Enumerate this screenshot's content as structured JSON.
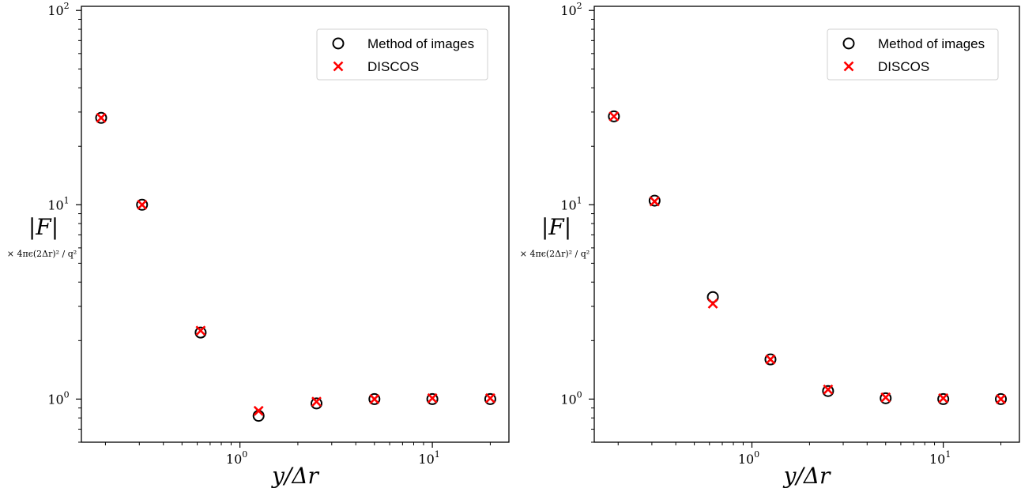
{
  "chart_data": [
    {
      "type": "scatter",
      "xscale": "log",
      "yscale": "log",
      "xlim": [
        0.15,
        25
      ],
      "ylim": [
        0.6,
        105
      ],
      "xlabel": "y/Δr",
      "ylabel_main": "|F|",
      "ylabel_sub": "× 4πϵ(2Δr)² / q²",
      "x_ticks": [
        {
          "value": 1,
          "base": "10",
          "exp": "0"
        },
        {
          "value": 10,
          "base": "10",
          "exp": "1"
        }
      ],
      "y_ticks": [
        {
          "value": 1,
          "base": "10",
          "exp": "0"
        },
        {
          "value": 10,
          "base": "10",
          "exp": "1"
        },
        {
          "value": 100,
          "base": "10",
          "exp": "2"
        }
      ],
      "legend": {
        "placement": "top-right",
        "entries": [
          "Method of images",
          "DISCOS"
        ]
      },
      "series": [
        {
          "name": "Method of images",
          "marker": "circle",
          "color": "#000000",
          "x": [
            0.19,
            0.31,
            0.625,
            1.25,
            2.5,
            5,
            10,
            20
          ],
          "y": [
            28.0,
            10.0,
            2.2,
            0.82,
            0.95,
            1.0,
            1.0,
            1.0
          ]
        },
        {
          "name": "DISCOS",
          "marker": "x",
          "color": "#ff0000",
          "x": [
            0.19,
            0.31,
            0.625,
            1.25,
            2.5,
            5,
            10,
            20
          ],
          "y": [
            28.0,
            10.0,
            2.25,
            0.87,
            0.97,
            1.0,
            1.01,
            1.01
          ]
        }
      ]
    },
    {
      "type": "scatter",
      "xscale": "log",
      "yscale": "log",
      "xlim": [
        0.15,
        25
      ],
      "ylim": [
        0.6,
        105
      ],
      "xlabel": "y/Δr",
      "ylabel_main": "|F|",
      "ylabel_sub": "× 4πϵ(2Δr)² / q²",
      "x_ticks": [
        {
          "value": 1,
          "base": "10",
          "exp": "0"
        },
        {
          "value": 10,
          "base": "10",
          "exp": "1"
        }
      ],
      "y_ticks": [
        {
          "value": 1,
          "base": "10",
          "exp": "0"
        },
        {
          "value": 10,
          "base": "10",
          "exp": "1"
        },
        {
          "value": 100,
          "base": "10",
          "exp": "2"
        }
      ],
      "legend": {
        "placement": "top-right",
        "entries": [
          "Method of images",
          "DISCOS"
        ]
      },
      "series": [
        {
          "name": "Method of images",
          "marker": "circle",
          "color": "#000000",
          "x": [
            0.19,
            0.31,
            0.625,
            1.25,
            2.5,
            5,
            10,
            20
          ],
          "y": [
            28.5,
            10.5,
            3.35,
            1.6,
            1.1,
            1.01,
            1.0,
            1.0
          ]
        },
        {
          "name": "DISCOS",
          "marker": "x",
          "color": "#ff0000",
          "x": [
            0.19,
            0.31,
            0.625,
            1.25,
            2.5,
            5,
            10,
            20
          ],
          "y": [
            28.5,
            10.4,
            3.1,
            1.6,
            1.12,
            1.02,
            1.01,
            1.0
          ]
        }
      ]
    }
  ]
}
